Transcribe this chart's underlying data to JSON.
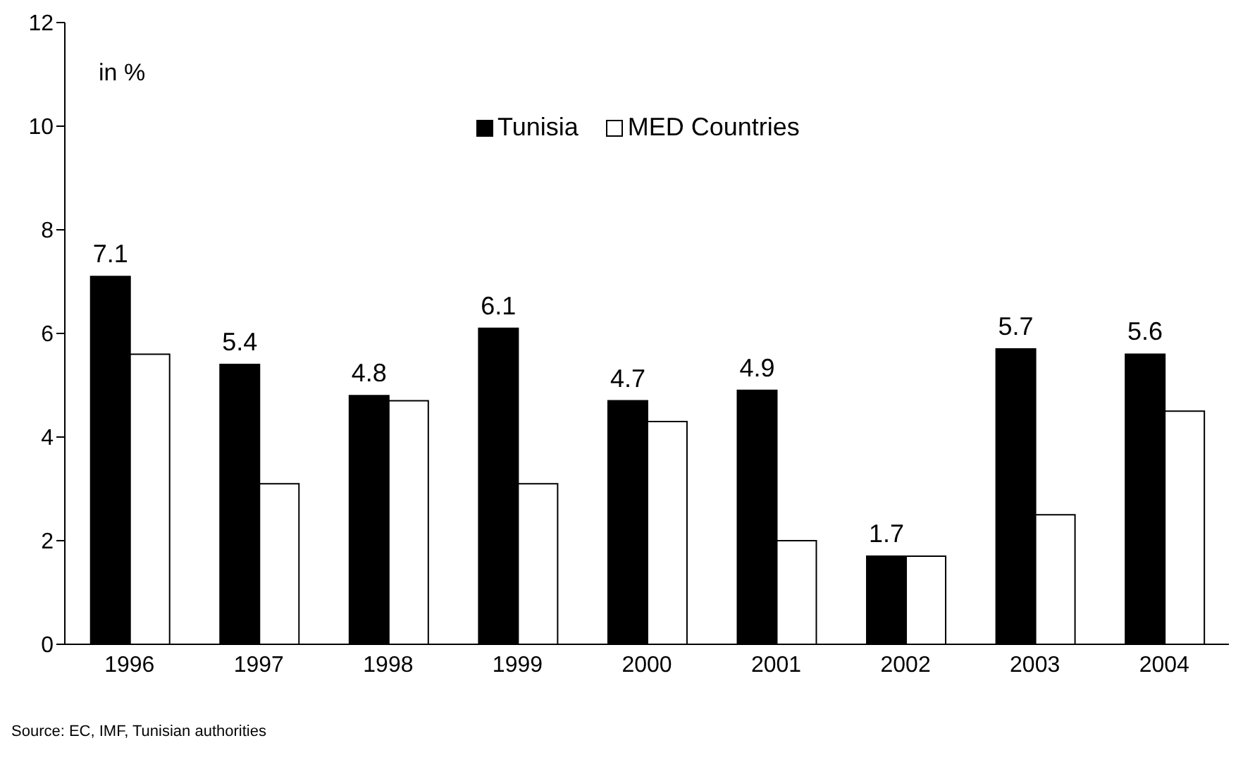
{
  "chart_data": {
    "type": "bar",
    "ylabel": "in %",
    "categories": [
      "1996",
      "1997",
      "1998",
      "1999",
      "2000",
      "2001",
      "2002",
      "2003",
      "2004"
    ],
    "series": [
      {
        "name": "Tunisia",
        "color": "#000000",
        "values": [
          7.1,
          5.4,
          4.8,
          6.1,
          4.7,
          4.9,
          1.7,
          5.7,
          5.6
        ],
        "value_labels": [
          "7.1",
          "5.4",
          "4.8",
          "6.1",
          "4.7",
          "4.9",
          "1.7",
          "5.7",
          "5.6"
        ]
      },
      {
        "name": "MED Countries",
        "color": "#ffffff",
        "values": [
          5.6,
          3.1,
          4.7,
          3.1,
          4.3,
          2.0,
          1.7,
          2.5,
          4.5
        ]
      }
    ],
    "ylim": [
      0,
      12
    ],
    "yticks": [
      0,
      2,
      4,
      6,
      8,
      10,
      12
    ],
    "grid": false,
    "legend": "top",
    "annotations": [
      "Source: EC, IMF, Tunisian authorities"
    ]
  }
}
